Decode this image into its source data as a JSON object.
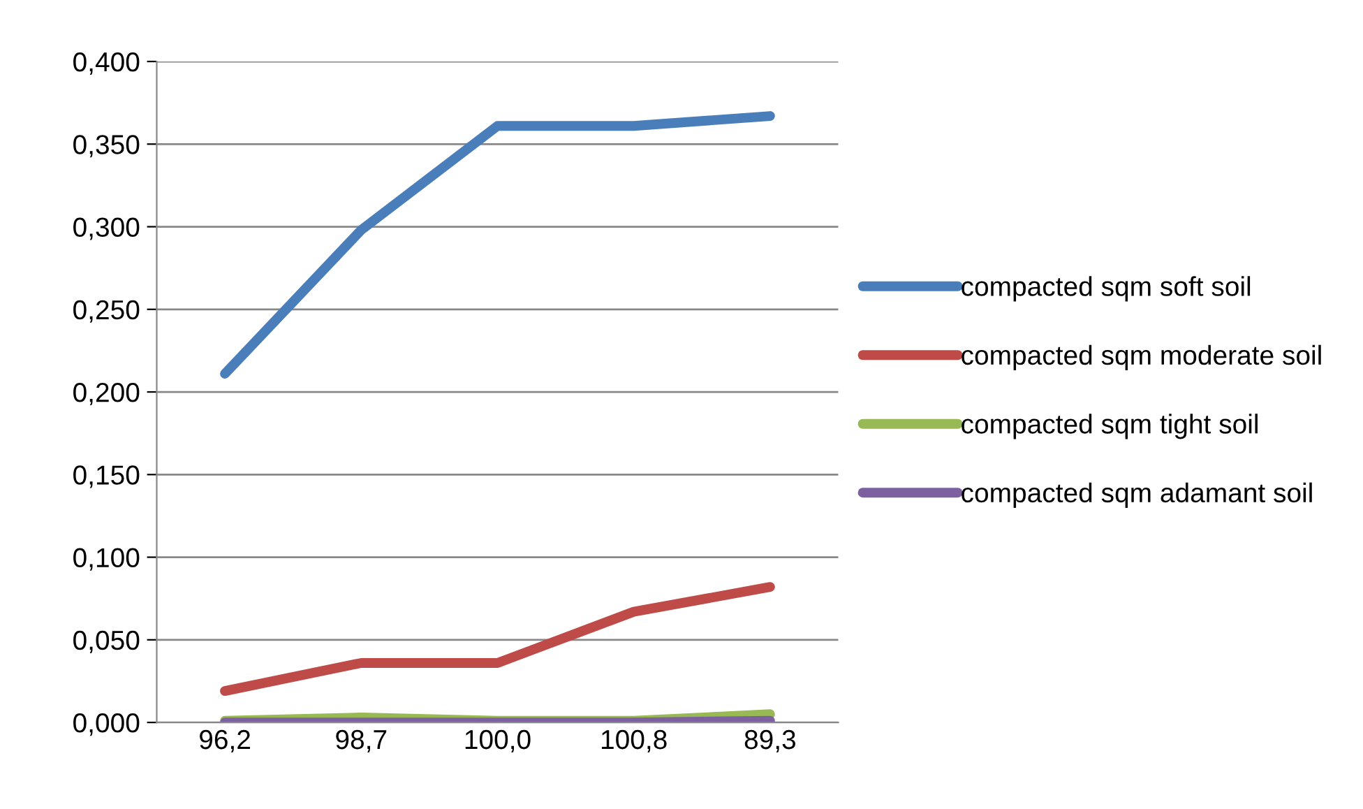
{
  "chart_data": {
    "type": "line",
    "categories": [
      "96,2",
      "98,7",
      "100,0",
      "100,8",
      "89,3"
    ],
    "series": [
      {
        "name": "compacted sqm soft soil",
        "color": "#4a7ebb",
        "values": [
          0.211,
          0.298,
          0.361,
          0.361,
          0.367
        ]
      },
      {
        "name": "compacted sqm moderate soil",
        "color": "#be4b48",
        "values": [
          0.019,
          0.036,
          0.036,
          0.067,
          0.082
        ]
      },
      {
        "name": "compacted sqm tight soil",
        "color": "#98b954",
        "values": [
          0.001,
          0.003,
          0.001,
          0.001,
          0.005
        ]
      },
      {
        "name": "compacted sqm adamant soil",
        "color": "#7d60a0",
        "values": [
          0.0,
          0.0,
          0.0,
          0.0,
          0.001
        ]
      }
    ],
    "ylim": [
      0,
      0.4
    ],
    "yticks": [
      {
        "value": 0,
        "label": "0,000"
      },
      {
        "value": 0.05,
        "label": "0,050"
      },
      {
        "value": 0.1,
        "label": "0,100"
      },
      {
        "value": 0.15,
        "label": "0,150"
      },
      {
        "value": 0.2,
        "label": "0,200"
      },
      {
        "value": 0.25,
        "label": "0,250"
      },
      {
        "value": 0.3,
        "label": "0,300"
      },
      {
        "value": 0.35,
        "label": "0,350"
      },
      {
        "value": 0.4,
        "label": "0,400"
      }
    ],
    "grid": "y",
    "legend": "right",
    "marker": "none",
    "line_style": "solid"
  }
}
